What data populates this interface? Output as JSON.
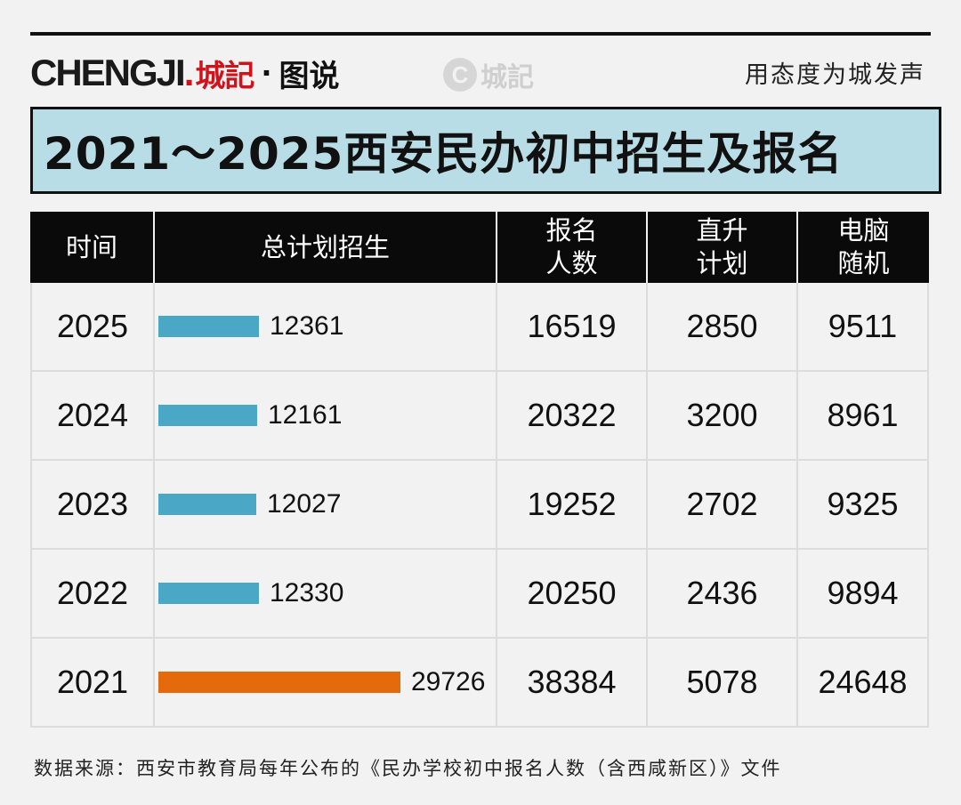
{
  "brand": {
    "latin": "CHENGJI",
    "dot": ".",
    "cn": "城記",
    "sep": "·",
    "sub": "图说"
  },
  "watermark": {
    "icon": "C",
    "text": "城記"
  },
  "slogan": "用态度为城发声",
  "title": "2021～2025西安民办初中招生及报名",
  "headers": {
    "time": "时间",
    "plan": "总计划招生",
    "apply": [
      "报名",
      "人数"
    ],
    "direct": [
      "直升",
      "计划"
    ],
    "lottery": [
      "电脑",
      "随机"
    ]
  },
  "colors": {
    "normal_bar": "#4aa8c6",
    "highlight_bar": "#e56a0c",
    "title_bg": "#b9dde6"
  },
  "chart_data": {
    "type": "table",
    "rows": [
      {
        "year": "2025",
        "plan": 12361,
        "apply": 16519,
        "direct": 2850,
        "lottery": 9511,
        "highlight": false
      },
      {
        "year": "2024",
        "plan": 12161,
        "apply": 20322,
        "direct": 3200,
        "lottery": 8961,
        "highlight": false
      },
      {
        "year": "2023",
        "plan": 12027,
        "apply": 19252,
        "direct": 2702,
        "lottery": 9325,
        "highlight": false
      },
      {
        "year": "2022",
        "plan": 12330,
        "apply": 20250,
        "direct": 2436,
        "lottery": 9894,
        "highlight": false
      },
      {
        "year": "2021",
        "plan": 29726,
        "apply": 38384,
        "direct": 5078,
        "lottery": 24648,
        "highlight": true
      }
    ]
  },
  "source": "数据来源：西安市教育局每年公布的《民办学校初中报名人数（含西咸新区）》文件"
}
